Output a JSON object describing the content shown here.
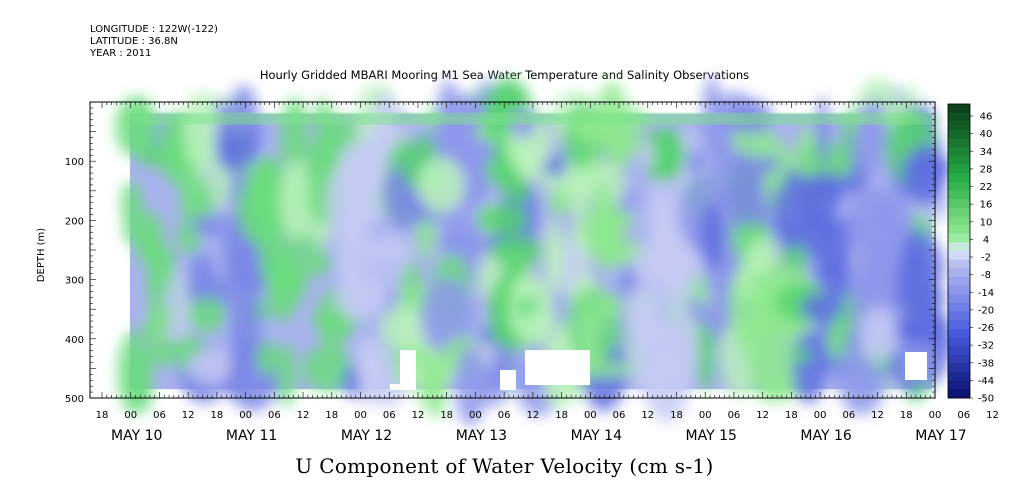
{
  "header": {
    "longitude": "LONGITUDE : 122W(-122)",
    "latitude": "LATITUDE : 36.8N",
    "year": "YEAR : 2011",
    "title": "Hourly Gridded MBARI Mooring M1 Sea Water Temperature and Salinity Observations"
  },
  "chart_data": {
    "type": "heatmap",
    "title": "Hourly Gridded MBARI Mooring M1 Sea Water Temperature and Salinity Observations",
    "xlabel": "U Component of Water Velocity (cm s-1)",
    "ylabel": "DEPTH (m)",
    "ylim": [
      500,
      0
    ],
    "y_ticks": [
      100,
      200,
      300,
      400,
      500
    ],
    "x_hour_ticks": [
      "18",
      "00",
      "06",
      "12",
      "18",
      "00",
      "06",
      "12",
      "18",
      "00",
      "06",
      "12",
      "18",
      "00",
      "06",
      "12",
      "18",
      "00",
      "06",
      "12",
      "18",
      "00",
      "06",
      "12",
      "18",
      "00",
      "06",
      "12",
      "18",
      "00",
      "06",
      "12"
    ],
    "x_day_labels": [
      "MAY 10",
      "MAY 11",
      "MAY 12",
      "MAY 13",
      "MAY 14",
      "MAY 15",
      "MAY 16",
      "MAY 17"
    ],
    "colorbar_levels": [
      46,
      40,
      34,
      28,
      22,
      16,
      10,
      4,
      -2,
      -8,
      -14,
      -20,
      -26,
      -32,
      -38,
      -44,
      -50
    ],
    "data_start": "May 10 18:00",
    "data_depth_range": [
      20,
      485
    ],
    "colors": {
      "strong_positive": "#0a4a1a",
      "positive": "#66e07a",
      "weak_positive": "#b8f0b8",
      "weak_negative": "#c8ccf4",
      "negative": "#8f98ec",
      "strong_negative": "#101a7a"
    }
  }
}
